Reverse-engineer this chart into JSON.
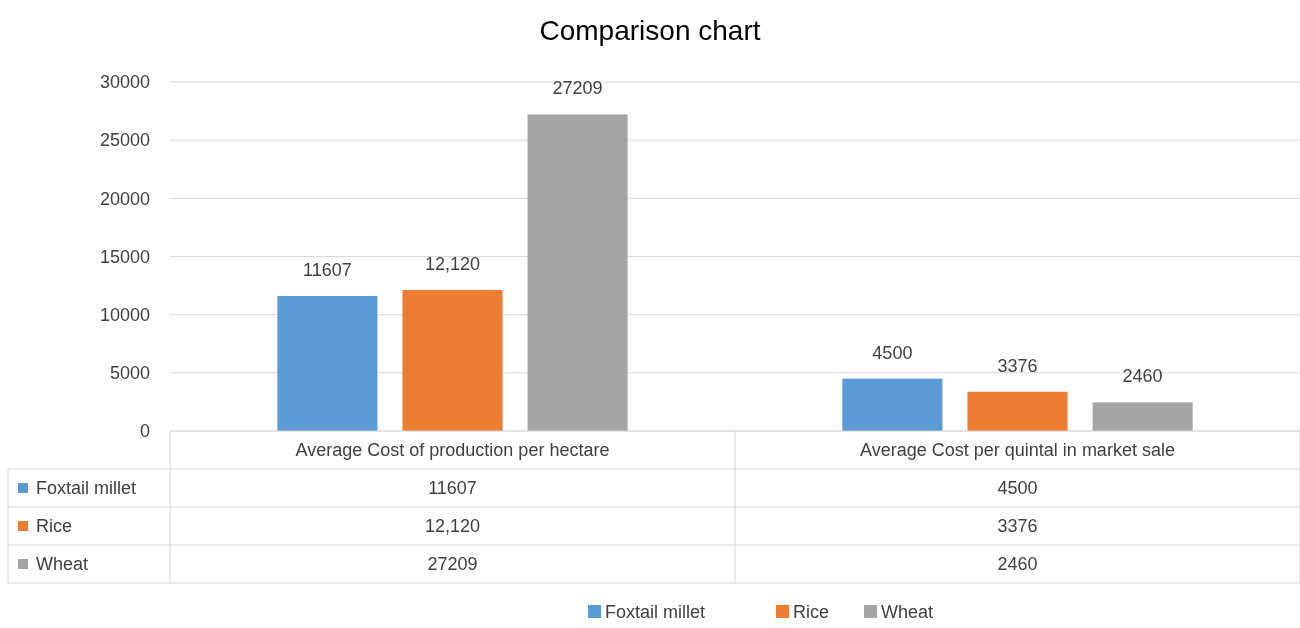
{
  "chart_data": {
    "type": "bar",
    "title": "Comparison chart",
    "categories": [
      "Average Cost of production per hectare",
      "Average Cost per quintal in market sale"
    ],
    "series": [
      {
        "name": "Foxtail millet",
        "color": "#5b9bd5",
        "values": [
          11607,
          4500
        ],
        "value_labels": [
          "11607",
          "4500"
        ]
      },
      {
        "name": "Rice",
        "color": "#ed7d31",
        "values": [
          12120,
          3376
        ],
        "value_labels": [
          "12,120",
          "3376"
        ]
      },
      {
        "name": "Wheat",
        "color": "#a5a5a5",
        "values": [
          27209,
          2460
        ],
        "value_labels": [
          "27209",
          "2460"
        ]
      }
    ],
    "ylim": [
      0,
      30000
    ],
    "yticks": [
      0,
      5000,
      10000,
      15000,
      20000,
      25000,
      30000
    ],
    "grid": "y",
    "legend": "bottom"
  }
}
